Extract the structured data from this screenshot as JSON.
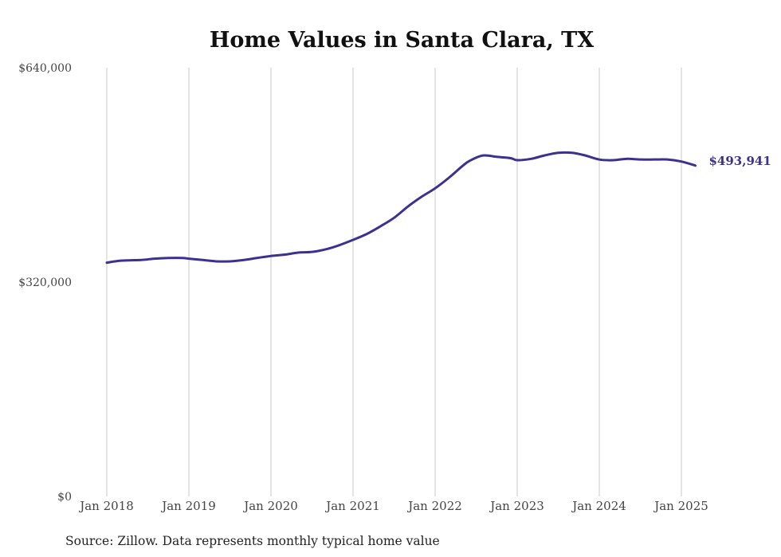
{
  "chart_data": {
    "type": "line",
    "title": "Home Values in Santa Clara, TX",
    "source_note": "Source: Zillow. Data represents monthly typical home value",
    "xlabel": "",
    "ylabel": "",
    "ylim": [
      0,
      640000
    ],
    "y_ticks": [
      {
        "value": 0,
        "label": "$0"
      },
      {
        "value": 320000,
        "label": "$320,000"
      },
      {
        "value": 640000,
        "label": "$640,000"
      }
    ],
    "x_ticks": [
      {
        "value": 2018,
        "label": "Jan 2018"
      },
      {
        "value": 2019,
        "label": "Jan 2019"
      },
      {
        "value": 2020,
        "label": "Jan 2020"
      },
      {
        "value": 2021,
        "label": "Jan 2021"
      },
      {
        "value": 2022,
        "label": "Jan 2022"
      },
      {
        "value": 2023,
        "label": "Jan 2023"
      },
      {
        "value": 2024,
        "label": "Jan 2024"
      },
      {
        "value": 2025,
        "label": "Jan 2025"
      }
    ],
    "xlim": [
      2018,
      2025.17
    ],
    "grid": "vertical",
    "line_color": "#3b3191",
    "series": [
      {
        "end_label": "$493,941",
        "x": [
          2018.0,
          2018.17,
          2018.42,
          2018.58,
          2018.75,
          2018.92,
          2019.0,
          2019.17,
          2019.33,
          2019.5,
          2019.67,
          2019.83,
          2020.0,
          2020.17,
          2020.33,
          2020.5,
          2020.67,
          2020.83,
          2021.0,
          2021.17,
          2021.33,
          2021.5,
          2021.67,
          2021.83,
          2022.0,
          2022.17,
          2022.33,
          2022.42,
          2022.58,
          2022.75,
          2022.92,
          2023.0,
          2023.17,
          2023.33,
          2023.5,
          2023.67,
          2023.83,
          2024.0,
          2024.17,
          2024.33,
          2024.5,
          2024.67,
          2024.83,
          2025.0,
          2025.17
        ],
        "y": [
          349000,
          352000,
          353000,
          355000,
          356000,
          356000,
          355000,
          353000,
          351000,
          351000,
          353000,
          356000,
          359000,
          361000,
          364000,
          365000,
          369000,
          375000,
          383000,
          392000,
          403000,
          416000,
          433000,
          447000,
          460000,
          476000,
          493000,
          501000,
          509000,
          507000,
          505000,
          502000,
          504000,
          509000,
          513000,
          513000,
          509000,
          503000,
          502000,
          504000,
          503000,
          503000,
          503000,
          500000,
          493941
        ]
      }
    ]
  }
}
